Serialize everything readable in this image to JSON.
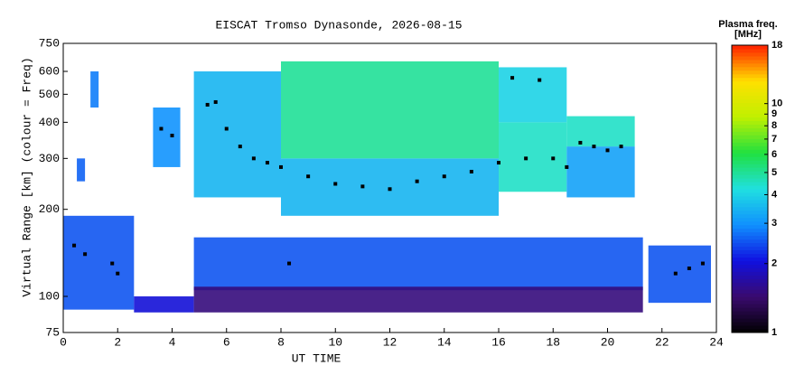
{
  "chart_data": {
    "type": "ionogram",
    "title": "EISCAT Tromso Dynasonde, 2026-08-15",
    "xlabel": "UT TIME",
    "ylabel": "Virtual Range [km] (colour = Freq)",
    "colorbar_title": "Plasma freq.",
    "colorbar_unit": "[MHz]",
    "xlim": [
      0,
      24
    ],
    "xticks": [
      0,
      2,
      4,
      6,
      8,
      10,
      12,
      14,
      16,
      18,
      20,
      22,
      24
    ],
    "ylim": [
      75,
      750
    ],
    "yticks": [
      75,
      100,
      200,
      300,
      400,
      500,
      600,
      750
    ],
    "ylog": true,
    "clim": [
      1,
      18
    ],
    "cticks": [
      1,
      2,
      3,
      4,
      5,
      6,
      7,
      8,
      9,
      10,
      18
    ],
    "clog": true,
    "colormap": [
      "#000000",
      "#3a0a6e",
      "#1010e0",
      "#1090ff",
      "#20e0e0",
      "#20e040",
      "#c0f000",
      "#ffe000",
      "#ff2000"
    ],
    "trace_color": "#000000",
    "echoes": [
      {
        "x0": 0,
        "x1": 2.6,
        "y0": 90,
        "y1": 190,
        "freq": 2.5
      },
      {
        "x0": 2.6,
        "x1": 4.8,
        "y0": 88,
        "y1": 100,
        "freq": 2.0
      },
      {
        "x0": 4.8,
        "x1": 21.3,
        "y0": 105,
        "y1": 160,
        "freq": 2.5
      },
      {
        "x0": 4.8,
        "x1": 21.3,
        "y0": 88,
        "y1": 108,
        "freq": 1.5
      },
      {
        "x0": 4.8,
        "x1": 8,
        "y0": 220,
        "y1": 600,
        "freq": 3.5
      },
      {
        "x0": 8,
        "x1": 16,
        "y0": 190,
        "y1": 300,
        "freq": 3.5
      },
      {
        "x0": 8,
        "x1": 16,
        "y0": 300,
        "y1": 650,
        "freq": 5
      },
      {
        "x0": 16,
        "x1": 18.5,
        "y0": 230,
        "y1": 400,
        "freq": 4.5
      },
      {
        "x0": 16,
        "x1": 18.5,
        "y0": 400,
        "y1": 620,
        "freq": 4
      },
      {
        "x0": 18.5,
        "x1": 21,
        "y0": 220,
        "y1": 330,
        "freq": 3.2
      },
      {
        "x0": 18.5,
        "x1": 21,
        "y0": 330,
        "y1": 420,
        "freq": 4.5
      },
      {
        "x0": 21.5,
        "x1": 23.8,
        "y0": 95,
        "y1": 150,
        "freq": 2.5
      },
      {
        "x0": 3.3,
        "x1": 4.3,
        "y0": 280,
        "y1": 450,
        "freq": 3
      },
      {
        "x0": 1,
        "x1": 1.3,
        "y0": 450,
        "y1": 600,
        "freq": 2.8
      },
      {
        "x0": 0.5,
        "x1": 0.8,
        "y0": 250,
        "y1": 300,
        "freq": 2.6
      }
    ],
    "trace": {
      "x": [
        0.4,
        0.8,
        1.8,
        2,
        3.6,
        4,
        5.3,
        5.6,
        6,
        6.5,
        7,
        7.5,
        8,
        8.3,
        9,
        10,
        11,
        12,
        13,
        14,
        15,
        16,
        16.5,
        17,
        17.5,
        18,
        18.5,
        19,
        19.5,
        20,
        20.5,
        22.5,
        23,
        23.5
      ],
      "y": [
        150,
        140,
        130,
        120,
        380,
        360,
        460,
        470,
        380,
        330,
        300,
        290,
        280,
        130,
        260,
        245,
        240,
        235,
        250,
        260,
        270,
        290,
        570,
        300,
        560,
        300,
        280,
        340,
        330,
        320,
        330,
        120,
        125,
        130
      ]
    }
  }
}
